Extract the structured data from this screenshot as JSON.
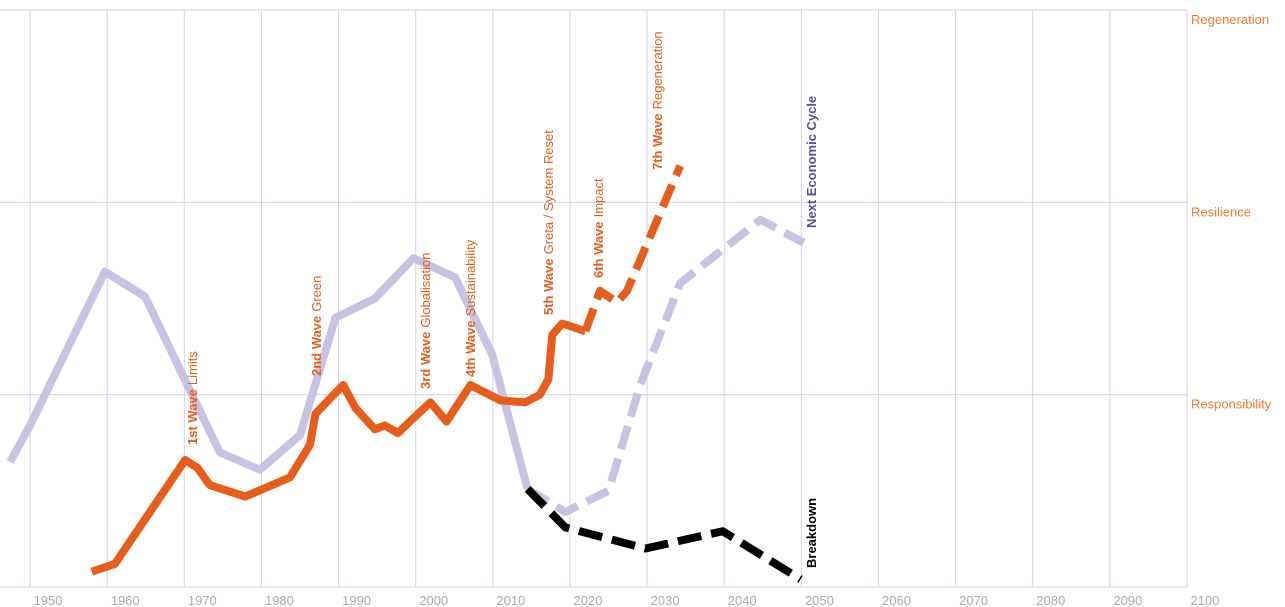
{
  "chart_data": {
    "type": "line",
    "xlim": [
      1947.4,
      2100
    ],
    "xticks": [
      1950,
      1960,
      1970,
      1980,
      1990,
      2000,
      2010,
      2020,
      2030,
      2040,
      2050,
      2060,
      2070,
      2080,
      2090,
      2100
    ],
    "ylim": [
      0,
      3
    ],
    "yticks": [
      {
        "value": 1,
        "label": "Responsibility"
      },
      {
        "value": 2,
        "label": "Resilience"
      },
      {
        "value": 3,
        "label": "Regeneration"
      }
    ],
    "grid": true,
    "series": [
      {
        "color": "#c8c3e3",
        "dashed": false,
        "x": [
          1947.4,
          1950,
          1959.7,
          1964.9,
          1974.6,
          1979.8,
          1985.0,
          1989.6,
          1994.7,
          1999.7,
          2005.1,
          2009.9,
          2014.5
        ],
        "values": [
          0.65,
          0.84,
          1.64,
          1.51,
          0.7,
          0.61,
          0.79,
          1.4,
          1.5,
          1.71,
          1.61,
          1.21,
          0.51
        ]
      },
      {
        "color": "#c8c3e3",
        "dashed": true,
        "x": [
          2014.5,
          2019.4,
          2025.0,
          2029.1,
          2034.3,
          2044.7,
          2050.3
        ],
        "values": [
          0.51,
          0.39,
          0.5,
          1.05,
          1.58,
          1.91,
          1.79
        ]
      },
      {
        "color": "#000000",
        "dashed": true,
        "x": [
          2014.5,
          2019.4,
          2029.8,
          2039.8,
          2049.9
        ],
        "values": [
          0.51,
          0.31,
          0.2,
          0.29,
          0.04
        ]
      },
      {
        "color": "#e85d1a",
        "dashed": false,
        "x": [
          1958.0,
          1961.0,
          1970.1,
          1971.7,
          1973.3,
          1977.9,
          1983.7,
          1986.3,
          1987.0,
          1988.9,
          1990.6,
          1992.2,
          1994.7,
          1996.0,
          1997.7,
          1999.5,
          2001.9,
          2004.0,
          2007.1,
          2011.0,
          2014.2,
          2016.1,
          2017.2,
          2017.7,
          2019.0,
          2022.0
        ],
        "values": [
          0.08,
          0.12,
          0.66,
          0.62,
          0.53,
          0.47,
          0.57,
          0.74,
          0.9,
          0.98,
          1.05,
          0.93,
          0.82,
          0.84,
          0.8,
          0.87,
          0.96,
          0.86,
          1.05,
          0.97,
          0.96,
          1.0,
          1.08,
          1.31,
          1.37,
          1.33
        ]
      },
      {
        "color": "#e85d1a",
        "dashed": true,
        "x": [
          2022.0,
          2023.9,
          2026.1,
          2027.4,
          2034.3
        ],
        "values": [
          1.33,
          1.54,
          1.48,
          1.54,
          2.19
        ]
      }
    ],
    "annotations": [
      {
        "bold": "1st Wave",
        "text": "Limits",
        "color": "#e85d1a"
      },
      {
        "bold": "2nd Wave",
        "text": "Green",
        "color": "#e85d1a"
      },
      {
        "bold": "3rd Wave",
        "text": "Globalisation",
        "color": "#e85d1a"
      },
      {
        "bold": "4th Wave",
        "text": "Sustainability",
        "color": "#e85d1a"
      },
      {
        "bold": "5th Wave",
        "text": "Greta / System Reset",
        "color": "#e85d1a"
      },
      {
        "bold": "6th Wave",
        "text": "Impact",
        "color": "#e85d1a"
      },
      {
        "bold": "7th Wave",
        "text": "Regeneration",
        "color": "#e85d1a"
      },
      {
        "bold": "Next Economic Cycle",
        "color": "#5a4fa0"
      },
      {
        "bold": "Breakdown",
        "color": "#000000"
      }
    ]
  }
}
